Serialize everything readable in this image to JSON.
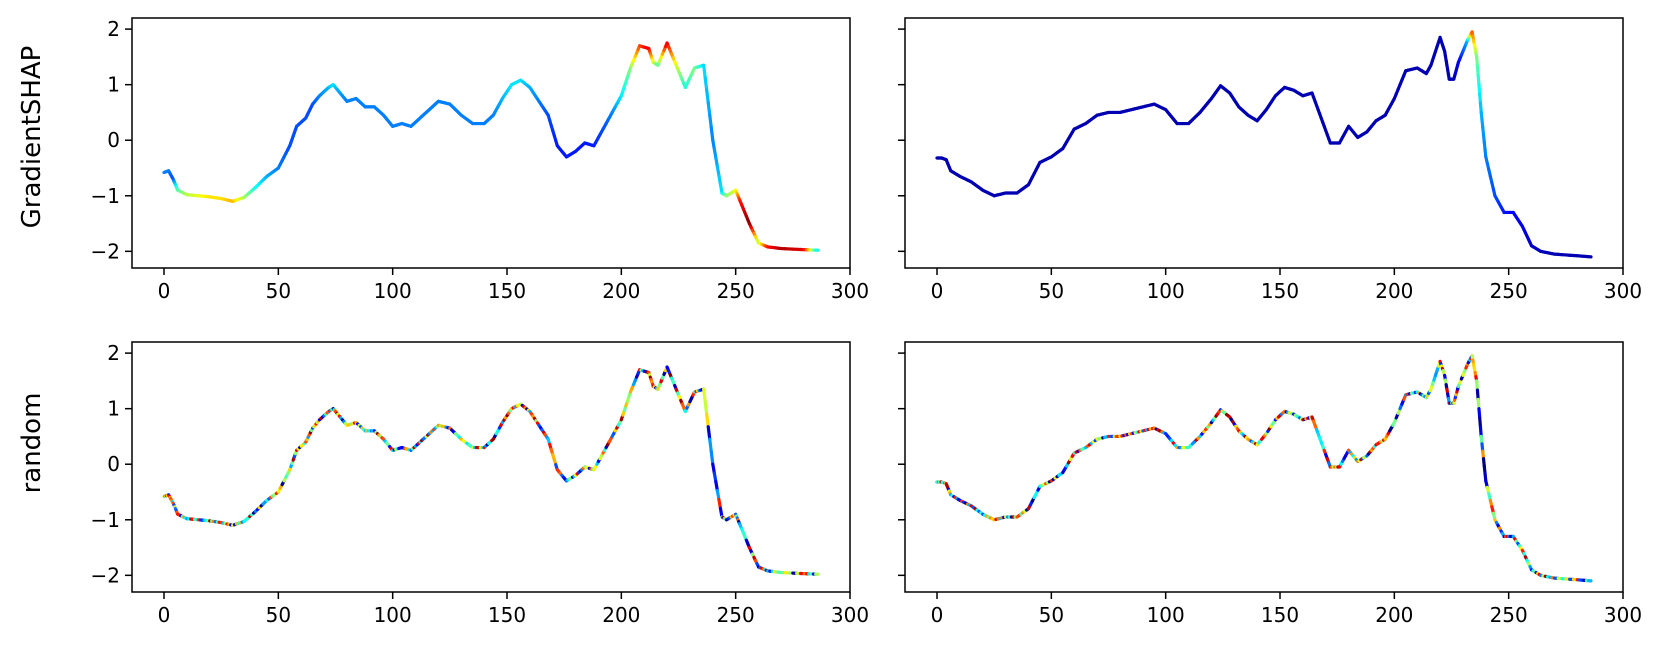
{
  "chart_data": {
    "type": "line",
    "row_labels": [
      "GradientSHAP",
      "random"
    ],
    "x_ticks": [
      0,
      50,
      100,
      150,
      200,
      250,
      300
    ],
    "y_ticks": [
      2,
      1,
      0,
      -1,
      -2
    ],
    "xlim": [
      -14,
      300
    ],
    "ylim": [
      -2.3,
      2.2
    ],
    "colormap": "jet",
    "colormap_stops": [
      "#00007f",
      "#0000ff",
      "#007fff",
      "#00ffff",
      "#7fff7f",
      "#ffff00",
      "#ff7f00",
      "#ff0000",
      "#7f0000"
    ],
    "left_series": {
      "x": [
        0,
        2,
        4,
        6,
        10,
        15,
        20,
        25,
        30,
        35,
        40,
        45,
        50,
        55,
        58,
        62,
        65,
        68,
        72,
        74,
        76,
        80,
        84,
        88,
        92,
        96,
        100,
        104,
        108,
        112,
        116,
        120,
        125,
        130,
        135,
        140,
        144,
        148,
        152,
        156,
        160,
        164,
        168,
        172,
        176,
        180,
        184,
        188,
        192,
        196,
        200,
        204,
        208,
        212,
        214,
        216,
        220,
        224,
        228,
        232,
        236,
        240,
        244,
        246,
        250,
        252,
        256,
        260,
        264,
        270,
        280,
        286
      ],
      "y": [
        -0.58,
        -0.55,
        -0.7,
        -0.9,
        -0.98,
        -1.0,
        -1.02,
        -1.05,
        -1.1,
        -1.03,
        -0.85,
        -0.65,
        -0.5,
        -0.1,
        0.25,
        0.4,
        0.65,
        0.8,
        0.95,
        1.0,
        0.9,
        0.7,
        0.75,
        0.6,
        0.6,
        0.45,
        0.25,
        0.3,
        0.25,
        0.4,
        0.55,
        0.7,
        0.65,
        0.45,
        0.3,
        0.3,
        0.45,
        0.75,
        1.0,
        1.08,
        0.95,
        0.7,
        0.45,
        -0.1,
        -0.3,
        -0.2,
        -0.05,
        -0.1,
        0.2,
        0.5,
        0.8,
        1.3,
        1.7,
        1.65,
        1.4,
        1.35,
        1.75,
        1.35,
        0.95,
        1.3,
        1.35,
        0.0,
        -0.95,
        -1.0,
        -0.9,
        -1.1,
        -1.5,
        -1.85,
        -1.92,
        -1.95,
        -1.97,
        -1.98
      ],
      "gradientshap_colors": [
        0.25,
        0.25,
        0.2,
        0.45,
        0.55,
        0.6,
        0.65,
        0.65,
        0.7,
        0.55,
        0.4,
        0.3,
        0.25,
        0.2,
        0.2,
        0.2,
        0.2,
        0.25,
        0.3,
        0.35,
        0.3,
        0.25,
        0.25,
        0.25,
        0.25,
        0.25,
        0.25,
        0.25,
        0.25,
        0.25,
        0.25,
        0.25,
        0.25,
        0.25,
        0.25,
        0.25,
        0.25,
        0.3,
        0.35,
        0.35,
        0.3,
        0.25,
        0.2,
        0.15,
        0.15,
        0.15,
        0.15,
        0.15,
        0.2,
        0.25,
        0.35,
        0.5,
        0.8,
        0.9,
        0.6,
        0.45,
        0.9,
        0.6,
        0.4,
        0.5,
        0.35,
        0.25,
        0.35,
        0.5,
        0.6,
        0.85,
        1.0,
        0.55,
        0.85,
        0.95,
        0.9,
        0.35
      ]
    },
    "right_series": {
      "x": [
        0,
        2,
        4,
        6,
        10,
        15,
        20,
        25,
        30,
        35,
        40,
        45,
        50,
        55,
        60,
        65,
        70,
        75,
        80,
        85,
        90,
        95,
        100,
        105,
        110,
        115,
        120,
        124,
        128,
        132,
        136,
        140,
        144,
        148,
        152,
        156,
        160,
        164,
        168,
        172,
        176,
        180,
        184,
        188,
        192,
        196,
        200,
        205,
        210,
        214,
        216,
        220,
        222,
        224,
        226,
        228,
        232,
        234,
        236,
        238,
        240,
        244,
        248,
        252,
        256,
        260,
        264,
        270,
        280,
        286
      ],
      "y": [
        -0.32,
        -0.32,
        -0.35,
        -0.55,
        -0.65,
        -0.75,
        -0.9,
        -1.0,
        -0.95,
        -0.95,
        -0.8,
        -0.4,
        -0.3,
        -0.15,
        0.2,
        0.3,
        0.45,
        0.5,
        0.5,
        0.55,
        0.6,
        0.65,
        0.55,
        0.3,
        0.3,
        0.5,
        0.75,
        0.98,
        0.85,
        0.6,
        0.45,
        0.35,
        0.55,
        0.8,
        0.95,
        0.9,
        0.8,
        0.85,
        0.4,
        -0.05,
        -0.05,
        0.25,
        0.05,
        0.15,
        0.35,
        0.45,
        0.75,
        1.25,
        1.3,
        1.2,
        1.35,
        1.85,
        1.6,
        1.1,
        1.1,
        1.4,
        1.8,
        1.95,
        1.5,
        0.5,
        -0.3,
        -1.0,
        -1.3,
        -1.3,
        -1.55,
        -1.9,
        -2.0,
        -2.05,
        -2.08,
        -2.1
      ],
      "gradientshap_colors": [
        0.05,
        0.05,
        0.05,
        0.05,
        0.05,
        0.05,
        0.05,
        0.05,
        0.05,
        0.05,
        0.05,
        0.05,
        0.05,
        0.05,
        0.05,
        0.05,
        0.05,
        0.05,
        0.05,
        0.05,
        0.05,
        0.05,
        0.05,
        0.05,
        0.05,
        0.05,
        0.05,
        0.05,
        0.05,
        0.05,
        0.05,
        0.05,
        0.05,
        0.05,
        0.05,
        0.05,
        0.05,
        0.05,
        0.05,
        0.05,
        0.05,
        0.05,
        0.05,
        0.05,
        0.05,
        0.05,
        0.05,
        0.05,
        0.05,
        0.05,
        0.05,
        0.05,
        0.05,
        0.05,
        0.05,
        0.1,
        0.3,
        0.8,
        0.5,
        0.3,
        0.25,
        0.2,
        0.15,
        0.12,
        0.1,
        0.08,
        0.06,
        0.05,
        0.05,
        0.05
      ]
    }
  }
}
